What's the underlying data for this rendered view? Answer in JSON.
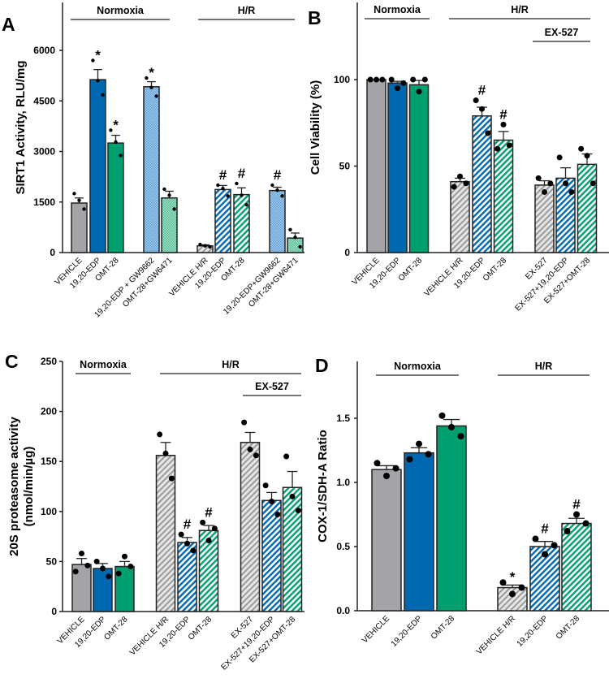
{
  "colors": {
    "gray": "#a3a3a8",
    "blue": "#0068b0",
    "green": "#009f70",
    "light_blue": "#8dbde6",
    "light_green": "#86d0b4"
  },
  "chart_data": [
    {
      "type": "bar",
      "panel": "A",
      "ylabel": "SIRT1 Activity, RLU/mg",
      "ylim": [
        0,
        6000
      ],
      "ticks": [
        0,
        1500,
        3000,
        4500,
        6000
      ],
      "groups": [
        {
          "label": "Normoxia"
        },
        {
          "label": "H/R"
        }
      ],
      "categories": [
        "VEHICLE",
        "19,20-EDP",
        "OMT-28",
        "19,20-EDP + GW9662",
        "OMT-28+GW6471",
        "VEHICLE H/R",
        "19,20-EDP",
        "OMT-28",
        "19,20-EDP+GW9662",
        "OMT-28+GW6471"
      ],
      "values": [
        1470,
        5130,
        3250,
        4920,
        1620,
        200,
        1870,
        1720,
        1840,
        430
      ],
      "sem": [
        150,
        300,
        230,
        150,
        200,
        30,
        120,
        200,
        100,
        150
      ],
      "points": [
        [
          1750,
          1550,
          1290
        ],
        [
          5700,
          5100,
          4680
        ],
        [
          3630,
          3280,
          2880
        ],
        [
          5180,
          4900,
          4640
        ],
        [
          1880,
          1700,
          1290
        ],
        [
          240,
          200,
          170
        ],
        [
          2000,
          1900,
          1680
        ],
        [
          2050,
          1700,
          1420
        ],
        [
          2000,
          1850,
          1680
        ],
        [
          680,
          450,
          170
        ]
      ],
      "fills": [
        "solid-gray",
        "solid-blue",
        "solid-green",
        "check-blue",
        "check-green",
        "hatch-gray",
        "hatch-blue",
        "hatch-green",
        "check-blue",
        "check-green"
      ],
      "marks": [
        "",
        "*",
        "*",
        "*",
        "",
        "",
        "#",
        "#",
        "#",
        ""
      ]
    },
    {
      "type": "bar",
      "panel": "B",
      "ylabel": "Cell Viability (%)",
      "ylim": [
        0,
        100
      ],
      "ticks": [
        0,
        50,
        100
      ],
      "groups": [
        {
          "label": "Normoxia"
        },
        {
          "label": "H/R"
        },
        {
          "label": "EX-527"
        }
      ],
      "categories": [
        "VEHICLE",
        "19,20-EDP",
        "OMT-28",
        "VEHICLE H/R",
        "19,20-EDP",
        "OMT-28",
        "EX-527",
        "EX-527+19,20-EDP",
        "EX-527+OMT-28"
      ],
      "values": [
        100,
        98,
        97,
        41,
        79,
        65,
        39,
        43,
        51
      ],
      "sem": [
        0,
        1,
        2.5,
        2,
        5,
        5,
        2.5,
        6,
        6
      ],
      "points": [
        [
          100,
          100,
          100
        ],
        [
          100,
          95,
          98
        ],
        [
          100,
          93,
          100
        ],
        [
          38,
          44,
          40
        ],
        [
          88,
          83,
          69
        ],
        [
          60,
          74,
          62
        ],
        [
          43,
          35,
          40
        ],
        [
          55,
          40,
          35
        ],
        [
          60,
          56,
          40
        ]
      ],
      "fills": [
        "solid-gray",
        "solid-blue",
        "solid-green",
        "hatch-gray",
        "hatch-blue",
        "hatch-green",
        "hatch-gray",
        "hatch-blue",
        "hatch-green"
      ],
      "marks": [
        "",
        "",
        "",
        "",
        "#",
        "#",
        "",
        "",
        ""
      ]
    },
    {
      "type": "bar",
      "panel": "C",
      "ylabel": "20S proteasome activity",
      "ylabel2": "(nmol/min/µg)",
      "ylim": [
        0,
        250
      ],
      "ticks": [
        0,
        50,
        100,
        150,
        200,
        250
      ],
      "groups": [
        {
          "label": "Normoxia"
        },
        {
          "label": "H/R"
        },
        {
          "label": "EX-527"
        }
      ],
      "categories": [
        "VEHICLE",
        "19,20-EDP",
        "OMT-28",
        "VEHICLE H/R",
        "19,20-EDP",
        "OMT-28",
        "EX-527",
        "EX-527+19,20-EDP",
        "EX-527+OMT-28"
      ],
      "values": [
        47,
        43,
        45,
        156,
        69,
        81,
        169,
        111,
        124
      ],
      "sem": [
        6,
        5,
        5,
        13,
        5,
        5,
        10,
        8,
        16
      ],
      "points": [
        [
          40,
          58,
          46
        ],
        [
          50,
          43,
          35
        ],
        [
          38,
          55,
          45
        ],
        [
          177,
          158,
          133
        ],
        [
          77,
          68,
          61
        ],
        [
          89,
          71,
          83
        ],
        [
          189,
          162,
          156
        ],
        [
          126,
          110,
          97
        ],
        [
          155,
          115,
          101
        ]
      ],
      "fills": [
        "solid-gray",
        "solid-blue",
        "solid-green",
        "hatch-gray",
        "hatch-blue",
        "hatch-green",
        "hatch-gray",
        "hatch-blue",
        "hatch-green"
      ],
      "marks": [
        "",
        "",
        "",
        "",
        "#",
        "#",
        "",
        "",
        ""
      ]
    },
    {
      "type": "bar",
      "panel": "D",
      "ylabel": "COX-1/SDH-A Ratio",
      "ylim": [
        0,
        1.5
      ],
      "ticks": [
        "0.0",
        "0.5",
        "1.0",
        "1.5"
      ],
      "groups": [
        {
          "label": "Normoxia"
        },
        {
          "label": "H/R"
        }
      ],
      "categories": [
        "VEHICLE",
        "19,20-EDP",
        "OMT-28",
        "VEHICLE H/R",
        "19,20-EDP",
        "OMT-28"
      ],
      "values": [
        1.1,
        1.23,
        1.44,
        0.18,
        0.5,
        0.68
      ],
      "sem": [
        0.03,
        0.04,
        0.05,
        0.02,
        0.04,
        0.04
      ],
      "points": [
        [
          1.15,
          1.05,
          1.11
        ],
        [
          1.18,
          1.3,
          1.22
        ],
        [
          1.52,
          1.43,
          1.36
        ],
        [
          0.22,
          0.13,
          0.18
        ],
        [
          0.56,
          0.44,
          0.51
        ],
        [
          0.62,
          0.75,
          0.68
        ]
      ],
      "fills": [
        "solid-gray",
        "solid-blue",
        "solid-green",
        "hatch-gray",
        "hatch-blue",
        "hatch-green"
      ],
      "marks": [
        "",
        "",
        "",
        "*",
        "#",
        "#"
      ]
    }
  ]
}
